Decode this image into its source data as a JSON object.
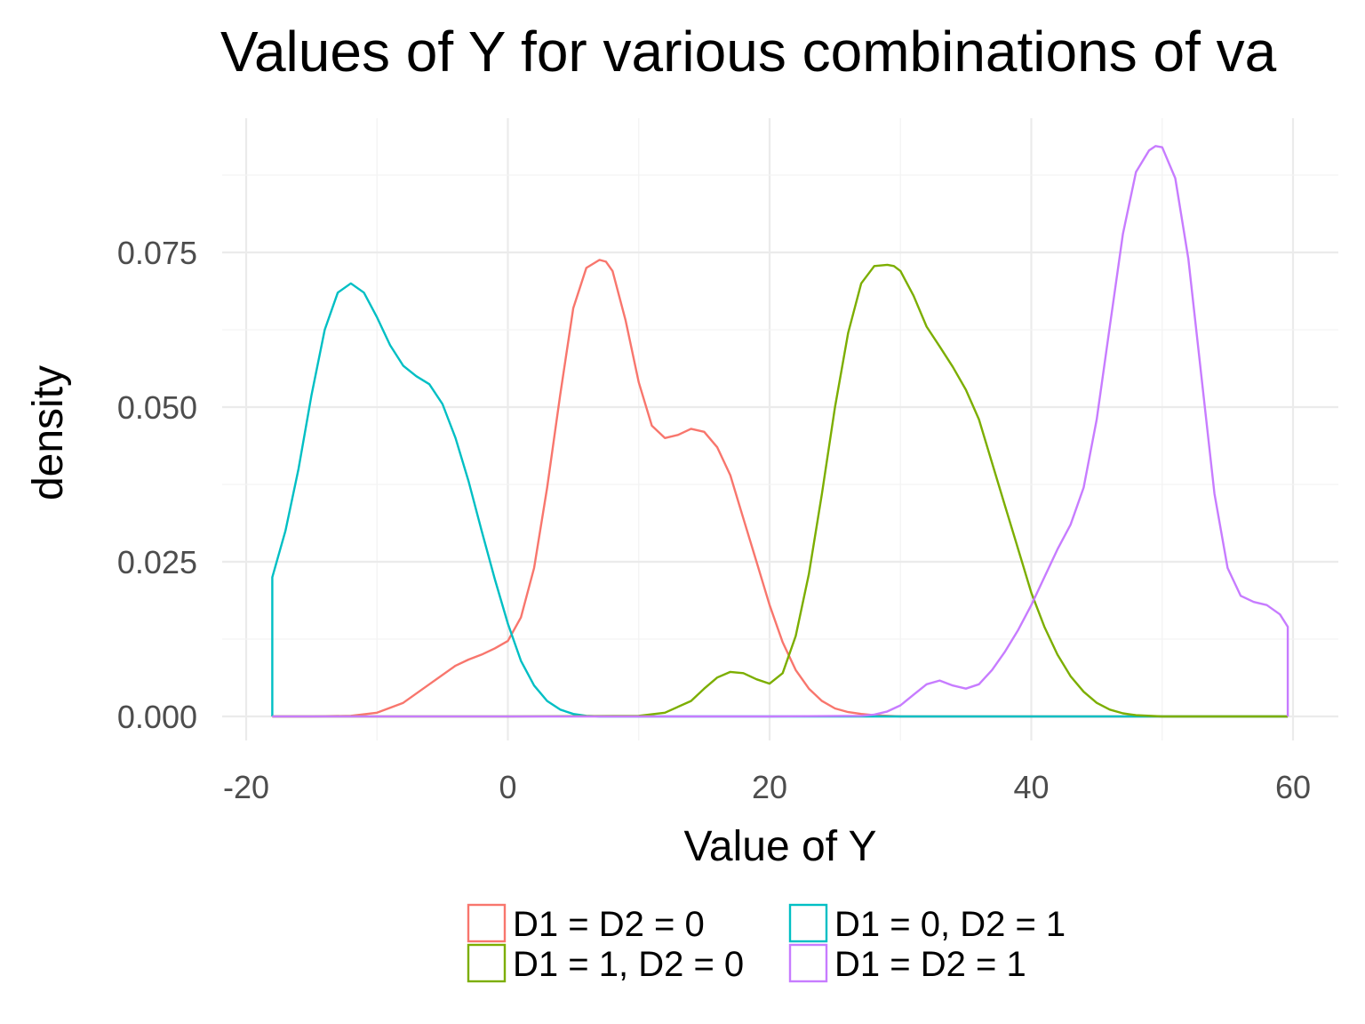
{
  "chart_data": {
    "type": "line",
    "title": "Values of Y for various combinations of va",
    "xlabel": "Value of Y",
    "ylabel": "density",
    "xlim": [
      -20,
      60
    ],
    "ylim": [
      0,
      0.092
    ],
    "x_ticks": [
      -20,
      0,
      20,
      40,
      60
    ],
    "x_tick_labels": [
      "-20",
      "0",
      "20",
      "40",
      "60"
    ],
    "y_ticks": [
      0,
      0.025,
      0.05,
      0.075
    ],
    "y_tick_labels": [
      "0.000",
      "0.025",
      "0.050",
      "0.075"
    ],
    "grid": true,
    "legend_position": "bottom",
    "series": [
      {
        "name": "D1 = D2 = 0",
        "color": "#F8766D",
        "x": [
          -18,
          -15,
          -12,
          -10,
          -8,
          -6,
          -4,
          -3,
          -2,
          -1,
          0,
          1,
          2,
          3,
          4,
          5,
          6,
          7,
          7.5,
          8,
          9,
          10,
          11,
          12,
          13,
          14,
          15,
          16,
          17,
          18,
          19,
          20,
          21,
          22,
          23,
          24,
          25,
          26,
          27,
          28,
          29,
          30,
          35,
          40,
          45,
          50,
          55,
          59.6
        ],
        "y": [
          0,
          0,
          0.0001,
          0.0006,
          0.0022,
          0.0052,
          0.0082,
          0.0092,
          0.01,
          0.011,
          0.0122,
          0.016,
          0.024,
          0.037,
          0.052,
          0.066,
          0.0725,
          0.0738,
          0.0735,
          0.072,
          0.064,
          0.054,
          0.047,
          0.045,
          0.0455,
          0.0465,
          0.046,
          0.0435,
          0.039,
          0.032,
          0.025,
          0.018,
          0.012,
          0.0075,
          0.0045,
          0.0025,
          0.0013,
          0.0007,
          0.0004,
          0.0002,
          0.0001,
          0,
          0,
          0,
          0,
          0,
          0,
          0
        ]
      },
      {
        "name": "D1 = 0, D2 = 1",
        "color": "#00BFC4",
        "x": [
          -18,
          -18,
          -17,
          -16,
          -15,
          -14,
          -13,
          -12,
          -11,
          -10,
          -9,
          -8,
          -7,
          -6,
          -5,
          -4,
          -3,
          -2,
          -1,
          0,
          1,
          2,
          3,
          4,
          5,
          6,
          7,
          8,
          10,
          15,
          20,
          30,
          40,
          50,
          59.6
        ],
        "y": [
          0,
          0.0225,
          0.03,
          0.04,
          0.052,
          0.0625,
          0.0685,
          0.07,
          0.0685,
          0.0645,
          0.06,
          0.0567,
          0.055,
          0.0537,
          0.0505,
          0.045,
          0.038,
          0.03,
          0.0222,
          0.015,
          0.009,
          0.005,
          0.0025,
          0.0011,
          0.0004,
          0.0001,
          0,
          0,
          0,
          0,
          0,
          0,
          0,
          0,
          0
        ]
      },
      {
        "name": "D1 = 1, D2 = 0",
        "color": "#7CAE00",
        "x": [
          -18,
          0,
          10,
          12,
          14,
          15,
          16,
          17,
          18,
          19,
          20,
          21,
          22,
          23,
          24,
          25,
          26,
          27,
          28,
          29,
          29.5,
          30,
          31,
          32,
          33,
          34,
          35,
          36,
          37,
          38,
          39,
          40,
          41,
          42,
          43,
          44,
          45,
          46,
          47,
          48,
          50,
          55,
          59.6
        ],
        "y": [
          0,
          0,
          0.0001,
          0.0006,
          0.0025,
          0.0045,
          0.0063,
          0.0072,
          0.007,
          0.006,
          0.0053,
          0.007,
          0.013,
          0.023,
          0.036,
          0.05,
          0.062,
          0.07,
          0.0728,
          0.073,
          0.0728,
          0.072,
          0.068,
          0.063,
          0.0598,
          0.0565,
          0.0528,
          0.048,
          0.041,
          0.034,
          0.027,
          0.02,
          0.0145,
          0.01,
          0.0065,
          0.004,
          0.0022,
          0.0011,
          0.0005,
          0.0002,
          0,
          0,
          0
        ]
      },
      {
        "name": "D1 = D2 = 1",
        "color": "#C77CFF",
        "x": [
          -18,
          0,
          20,
          27,
          28,
          29,
          30,
          31,
          32,
          33,
          34,
          35,
          36,
          37,
          38,
          39,
          40,
          41,
          42,
          43,
          44,
          45,
          46,
          47,
          48,
          49,
          49.5,
          50,
          51,
          52,
          53,
          54,
          55,
          56,
          57,
          58,
          59,
          59.6,
          59.6
        ],
        "y": [
          0,
          0,
          0,
          0.0001,
          0.0003,
          0.0008,
          0.0018,
          0.0035,
          0.0052,
          0.0058,
          0.005,
          0.0045,
          0.0052,
          0.0075,
          0.0105,
          0.014,
          0.018,
          0.0225,
          0.027,
          0.031,
          0.037,
          0.048,
          0.063,
          0.078,
          0.088,
          0.0915,
          0.0922,
          0.092,
          0.087,
          0.074,
          0.055,
          0.036,
          0.024,
          0.0195,
          0.0185,
          0.018,
          0.0165,
          0.0145,
          0
        ]
      }
    ]
  }
}
